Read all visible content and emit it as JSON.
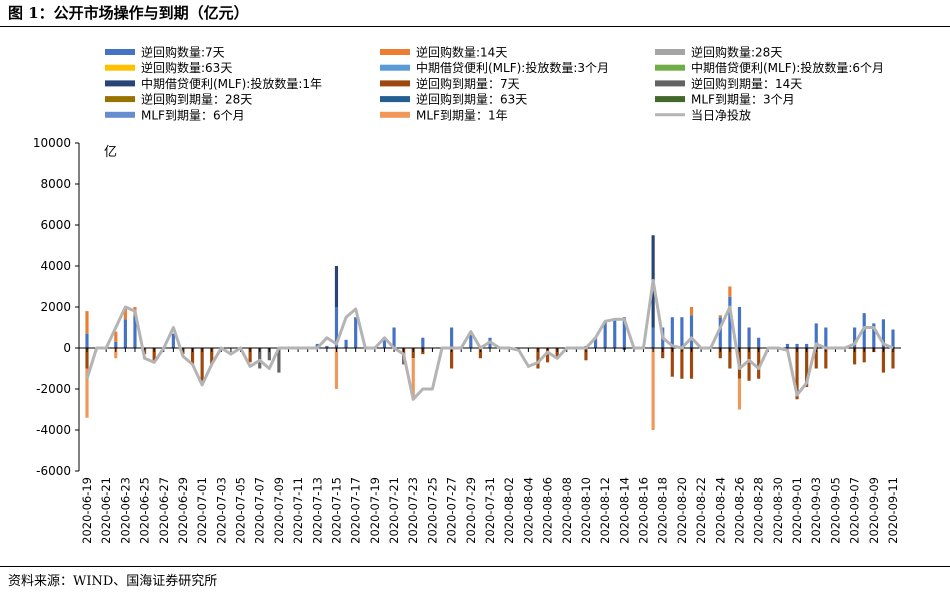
{
  "figure_title": "图 1：公开市场操作与到期（亿元）",
  "source": "资料来源：WIND、国海证券研究所",
  "chart_data": {
    "type": "bar",
    "stacked": true,
    "unit_label": "亿",
    "ylim": [
      -6000,
      10000
    ],
    "yticks": [
      -6000,
      -4000,
      -2000,
      0,
      2000,
      4000,
      6000,
      8000,
      10000
    ],
    "grid": false,
    "legend_position": "top",
    "x_tick_labels": [
      "2020-06-19",
      "2020-06-21",
      "2020-06-23",
      "2020-06-25",
      "2020-06-27",
      "2020-06-29",
      "2020-07-01",
      "2020-07-03",
      "2020-07-05",
      "2020-07-07",
      "2020-07-09",
      "2020-07-11",
      "2020-07-13",
      "2020-07-15",
      "2020-07-17",
      "2020-07-19",
      "2020-07-21",
      "2020-07-23",
      "2020-07-25",
      "2020-07-27",
      "2020-07-29",
      "2020-07-31",
      "2020-08-02",
      "2020-08-04",
      "2020-08-06",
      "2020-08-08",
      "2020-08-10",
      "2020-08-12",
      "2020-08-14",
      "2020-08-16",
      "2020-08-18",
      "2020-08-20",
      "2020-08-22",
      "2020-08-24",
      "2020-08-26",
      "2020-08-28",
      "2020-08-30",
      "2020-09-01",
      "2020-09-03",
      "2020-09-05",
      "2020-09-07",
      "2020-09-09",
      "2020-09-11"
    ],
    "dates": [
      "06-19",
      "06-20",
      "06-21",
      "06-22",
      "06-23",
      "06-24",
      "06-25",
      "06-26",
      "06-27",
      "06-28",
      "06-29",
      "06-30",
      "07-01",
      "07-02",
      "07-03",
      "07-04",
      "07-05",
      "07-06",
      "07-07",
      "07-08",
      "07-09",
      "07-10",
      "07-11",
      "07-12",
      "07-13",
      "07-14",
      "07-15",
      "07-16",
      "07-17",
      "07-18",
      "07-19",
      "07-20",
      "07-21",
      "07-22",
      "07-23",
      "07-24",
      "07-25",
      "07-26",
      "07-27",
      "07-28",
      "07-29",
      "07-30",
      "07-31",
      "08-01",
      "08-02",
      "08-03",
      "08-04",
      "08-05",
      "08-06",
      "08-07",
      "08-08",
      "08-09",
      "08-10",
      "08-11",
      "08-12",
      "08-13",
      "08-14",
      "08-15",
      "08-16",
      "08-17",
      "08-18",
      "08-19",
      "08-20",
      "08-21",
      "08-22",
      "08-23",
      "08-24",
      "08-25",
      "08-26",
      "08-27",
      "08-28",
      "08-29",
      "08-30",
      "08-31",
      "09-01",
      "09-02",
      "09-03",
      "09-04",
      "09-05",
      "09-06",
      "09-07",
      "09-08",
      "09-09",
      "09-10",
      "09-11"
    ],
    "series": [
      {
        "name": "逆回购数量:7天",
        "color": "#4472C4",
        "values": {
          "06-19": 700,
          "06-22": 300,
          "06-23": 1400,
          "06-24": 1600,
          "06-28": 700,
          "07-13": 200,
          "07-14": 100,
          "07-15": 2000,
          "07-16": 400,
          "07-17": 1500,
          "07-20": 500,
          "07-21": 1000,
          "07-24": 500,
          "07-27": 1000,
          "07-29": 800,
          "07-31": 500,
          "08-10": 100,
          "08-11": 500,
          "08-12": 1300,
          "08-13": 1400,
          "08-14": 1500,
          "08-17": 1000,
          "08-18": 1000,
          "08-19": 1500,
          "08-20": 1500,
          "08-21": 1600,
          "08-24": 1500,
          "08-25": 2500,
          "08-26": 2000,
          "08-27": 1000,
          "08-28": 500,
          "08-31": 200,
          "09-01": 200,
          "09-02": 200,
          "09-03": 1200,
          "09-04": 1000,
          "09-07": 1000,
          "09-08": 1700,
          "09-09": 1200,
          "09-10": 1400,
          "09-11": 900
        }
      },
      {
        "name": "逆回购数量:14天",
        "color": "#ED7D31",
        "values": {
          "06-19": 1100,
          "06-22": 500,
          "06-23": 600,
          "06-24": 400,
          "08-21": 400,
          "08-24": 100,
          "08-25": 500
        }
      },
      {
        "name": "逆回购数量:28天",
        "color": "#A5A5A5",
        "values": {}
      },
      {
        "name": "逆回购数量:63天",
        "color": "#FFC000",
        "values": {}
      },
      {
        "name": "中期借贷便利(MLF):投放数量:3个月",
        "color": "#5B9BD5",
        "values": {}
      },
      {
        "name": "中期借贷便利(MLF):投放数量:6个月",
        "color": "#70AD47",
        "values": {}
      },
      {
        "name": "中期借贷便利(MLF):投放数量:1年",
        "color": "#264478",
        "values": {
          "07-15": 2000,
          "08-17": 4500
        }
      },
      {
        "name": "逆回购到期量：7天",
        "color": "#9E480E",
        "values": {
          "06-19": -1000,
          "06-25": -300,
          "06-26": -600,
          "06-29": -300,
          "06-30": -800,
          "07-01": -1800,
          "07-02": -800,
          "07-06": -700,
          "07-22": -500,
          "07-23": -500,
          "07-24": -300,
          "07-27": -1000,
          "07-30": -500,
          "08-05": -1000,
          "08-06": -700,
          "08-07": -500,
          "08-10": -600,
          "08-18": -500,
          "08-19": -1400,
          "08-20": -1500,
          "08-21": -1500,
          "08-24": -500,
          "08-25": -1000,
          "08-26": -1500,
          "08-27": -1600,
          "08-28": -1500,
          "09-01": -2500,
          "09-02": -1900,
          "09-03": -1000,
          "09-04": -1000,
          "09-07": -800,
          "09-08": -700,
          "09-09": -200,
          "09-10": -1200,
          "09-11": -1000
        }
      },
      {
        "name": "逆回购到期量：14天",
        "color": "#636363",
        "values": {
          "07-07": -1000,
          "07-08": -600,
          "07-09": -1200,
          "07-22": -300,
          "08-14": -100
        }
      },
      {
        "name": "逆回购到期量：28天",
        "color": "#997300",
        "values": {}
      },
      {
        "name": "逆回购到期量：63天",
        "color": "#255E91",
        "values": {}
      },
      {
        "name": "MLF到期量：3个月",
        "color": "#43682B",
        "values": {}
      },
      {
        "name": "MLF到期量：6个月",
        "color": "#698ED0",
        "values": {}
      },
      {
        "name": "MLF到期量：1年",
        "color": "#F1975A",
        "values": {
          "06-19": -2400,
          "06-22": -500,
          "07-15": -2000,
          "07-23": -2000,
          "08-17": -4000,
          "08-26": -1500
        }
      },
      {
        "name": "当日净投放",
        "color": "#B4B4B4",
        "type": "line",
        "values": {
          "06-19": -1500,
          "06-20": 0,
          "06-21": 0,
          "06-22": 1000,
          "06-23": 2000,
          "06-24": 1800,
          "06-25": -500,
          "06-26": -700,
          "06-27": 0,
          "06-28": 1000,
          "06-29": -400,
          "06-30": -800,
          "07-01": -1800,
          "07-02": -800,
          "07-03": 0,
          "07-04": -300,
          "07-05": 0,
          "07-06": -900,
          "07-07": -600,
          "07-08": -1000,
          "07-09": 0,
          "07-10": 0,
          "07-11": 0,
          "07-12": 0,
          "07-13": 0,
          "07-14": 500,
          "07-15": 200,
          "07-16": 1500,
          "07-17": 1900,
          "07-18": 0,
          "07-19": 0,
          "07-20": 500,
          "07-21": 0,
          "07-22": -300,
          "07-23": -2500,
          "07-24": -2000,
          "07-25": -2000,
          "07-26": 0,
          "07-27": 0,
          "07-28": 0,
          "07-29": 800,
          "07-30": 0,
          "07-31": 300,
          "08-01": 0,
          "08-02": 0,
          "08-03": -100,
          "08-04": -900,
          "08-05": -700,
          "08-06": -200,
          "08-07": -500,
          "08-08": 0,
          "08-09": 0,
          "08-10": 0,
          "08-11": 500,
          "08-12": 1300,
          "08-13": 1400,
          "08-14": 1400,
          "08-15": 0,
          "08-16": 0,
          "08-17": 3300,
          "08-18": 500,
          "08-19": 100,
          "08-20": 0,
          "08-21": 500,
          "08-22": 0,
          "08-23": 0,
          "08-24": 1000,
          "08-25": 2000,
          "08-26": -1000,
          "08-27": -600,
          "08-28": -1000,
          "08-29": 0,
          "08-30": 0,
          "08-31": -100,
          "09-01": -2300,
          "09-02": -1700,
          "09-03": 200,
          "09-04": 0,
          "09-05": 0,
          "09-06": 0,
          "09-07": 200,
          "09-08": 1000,
          "09-09": 1000,
          "09-10": 200,
          "09-11": 0
        }
      }
    ]
  }
}
